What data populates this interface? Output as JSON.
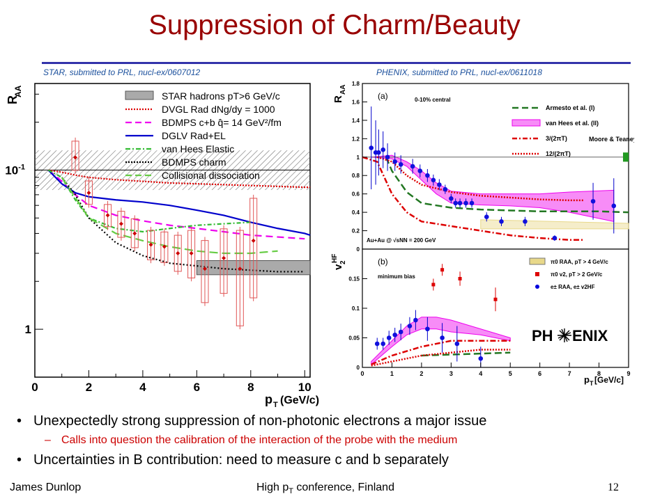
{
  "slide": {
    "title": "Suppression of Charm/Beauty",
    "left_citation": "STAR, submitted to PRL, nucl-ex/0607012",
    "right_citation": "PHENIX, submitted to PRL, nucl-ex/0611018",
    "bullets": [
      "Unexpectedly strong suppression of non-photonic electrons a major issue",
      "Calls into question the calibration of the interaction of the probe with the medium",
      "Uncertainties in B contribution: need to measure c and b separately"
    ],
    "footer_author": "James Dunlop",
    "footer_center_prefix": "High p",
    "footer_center_sub": "T",
    "footer_center_suffix": " conference, Finland",
    "page_number": "12"
  },
  "chart_data": [
    {
      "type": "line",
      "xlabel": "pT (GeV/c)",
      "ylabel": "RAA",
      "xlim": [
        0,
        10.2
      ],
      "ylim": [
        0.05,
        3.5
      ],
      "y_scale": "log",
      "x_ticks": [
        "0",
        "2",
        "4",
        "6",
        "8",
        "10"
      ],
      "y_ticks": [
        "1",
        "10-1"
      ],
      "legend_position": "top-right",
      "legend": [
        {
          "label": "STAR hadrons pT>6 GeV/c",
          "color": "#aaaaaa",
          "style": "box"
        },
        {
          "label": "DVGL Rad dNg/dy = 1000",
          "color": "#dd0000",
          "style": "dotted"
        },
        {
          "label": "BDMPS c+b q̂= 14 GeV²/fm",
          "color": "#ee00ee",
          "style": "dashed"
        },
        {
          "label": "DGLV Rad+EL",
          "color": "#0000cc",
          "style": "solid"
        },
        {
          "label": "van Hees Elastic",
          "color": "#33bb33",
          "style": "dashdot"
        },
        {
          "label": "BDMPS charm",
          "color": "#000000",
          "style": "dotted"
        },
        {
          "label": "Collisional dissociation",
          "color": "#66cc44",
          "style": "dashed"
        }
      ],
      "bands": [
        {
          "name": "normalization",
          "x": [
            0,
            10.2
          ],
          "y": [
            0.75,
            1.33
          ],
          "fill": "hatched"
        },
        {
          "name": "STAR hadrons pT>6 GeV/c",
          "x": [
            6,
            10.2
          ],
          "y": [
            0.22,
            0.27
          ],
          "fill": "#aaaaaa"
        }
      ],
      "series": [
        {
          "name": "DVGL Rad dNg/dy = 1000",
          "color": "#dd0000",
          "dash": "2,2",
          "x": [
            0.5,
            1,
            1.5,
            2,
            3,
            4,
            5,
            6,
            7,
            8,
            9,
            10,
            10.2
          ],
          "y": [
            1.0,
            0.97,
            0.93,
            0.9,
            0.87,
            0.85,
            0.83,
            0.82,
            0.81,
            0.8,
            0.79,
            0.78,
            0.78
          ]
        },
        {
          "name": "BDMPS c+b q̂= 14 GeV²/fm",
          "color": "#ee00ee",
          "dash": "10,6",
          "x": [
            0.5,
            1,
            1.5,
            2,
            3,
            4,
            5,
            6,
            7,
            8,
            9,
            10
          ],
          "y": [
            1.0,
            0.85,
            0.7,
            0.6,
            0.52,
            0.48,
            0.45,
            0.43,
            0.41,
            0.39,
            0.38,
            0.37
          ]
        },
        {
          "name": "DGLV Rad+EL",
          "color": "#0000cc",
          "dash": "",
          "x": [
            0.5,
            1,
            1.5,
            2,
            3,
            4,
            5,
            6,
            7,
            8,
            9,
            10,
            10.2
          ],
          "y": [
            1.0,
            0.82,
            0.72,
            0.68,
            0.65,
            0.63,
            0.6,
            0.56,
            0.52,
            0.47,
            0.43,
            0.4,
            0.39
          ]
        },
        {
          "name": "van Hees Elastic",
          "color": "#33bb33",
          "dash": "6,3,2,3",
          "x": [
            0.5,
            1,
            1.5,
            2,
            3,
            4,
            5,
            6,
            7,
            8
          ],
          "y": [
            1.0,
            0.9,
            0.65,
            0.5,
            0.43,
            0.41,
            0.43,
            0.45,
            0.46,
            0.47
          ]
        },
        {
          "name": "BDMPS charm",
          "color": "#000000",
          "dash": "2,3",
          "x": [
            1,
            1.5,
            2,
            3,
            4,
            5,
            6,
            7,
            8,
            9,
            10
          ],
          "y": [
            0.9,
            0.7,
            0.5,
            0.35,
            0.29,
            0.26,
            0.25,
            0.24,
            0.235,
            0.23,
            0.23
          ]
        },
        {
          "name": "Collisional dissociation",
          "color": "#66cc44",
          "dash": "12,6",
          "x": [
            1,
            2,
            3,
            4,
            5,
            6,
            7,
            8,
            9
          ],
          "y": [
            0.9,
            0.5,
            0.4,
            0.36,
            0.33,
            0.31,
            0.3,
            0.3,
            0.31
          ]
        }
      ],
      "points": [
        {
          "x": 1.5,
          "y": 1.2,
          "lo": 0.95,
          "hi": 1.6
        },
        {
          "x": 2.0,
          "y": 0.72,
          "lo": 0.58,
          "hi": 0.9
        },
        {
          "x": 2.7,
          "y": 0.52,
          "lo": 0.42,
          "hi": 0.64
        },
        {
          "x": 3.2,
          "y": 0.46,
          "lo": 0.36,
          "hi": 0.58
        },
        {
          "x": 3.7,
          "y": 0.4,
          "lo": 0.31,
          "hi": 0.52
        },
        {
          "x": 4.3,
          "y": 0.34,
          "lo": 0.26,
          "hi": 0.44
        },
        {
          "x": 4.8,
          "y": 0.33,
          "lo": 0.25,
          "hi": 0.43
        },
        {
          "x": 5.3,
          "y": 0.3,
          "lo": 0.22,
          "hi": 0.41
        },
        {
          "x": 5.8,
          "y": 0.3,
          "lo": 0.2,
          "hi": 0.44
        },
        {
          "x": 6.3,
          "y": 0.24,
          "lo": 0.14,
          "hi": 0.38
        },
        {
          "x": 7.0,
          "y": 0.28,
          "lo": 0.16,
          "hi": 0.45
        },
        {
          "x": 7.6,
          "y": 0.24,
          "lo": 0.1,
          "hi": 0.44
        },
        {
          "x": 8.1,
          "y": 0.36,
          "lo": 0.15,
          "hi": 0.7
        }
      ]
    },
    {
      "type": "line",
      "panel": "(a)",
      "title": "0-10% central",
      "annotation": "Au+Au @ √sNN = 200 GeV",
      "ylabel": "RAA",
      "xlim": [
        0,
        9
      ],
      "ylim": [
        0,
        1.8
      ],
      "y_ticks": [
        "0",
        "0.2",
        "0.4",
        "0.6",
        "0.8",
        "1",
        "1.2",
        "1.4",
        "1.6",
        "1.8"
      ],
      "legend": [
        {
          "label": "Armesto et al. (I)",
          "color": "#227722",
          "style": "dashed"
        },
        {
          "label": "van Hees et al. (II)",
          "color": "#ee00ee",
          "style": "band"
        },
        {
          "label": "3/(2πT)",
          "color": "#dd0000",
          "style": "dashdot"
        },
        {
          "label": "12/(2πT)",
          "color": "#dd0000",
          "style": "dotted"
        },
        {
          "label": "Moore & Teaney (III)",
          "color": "#000000",
          "style": "text"
        }
      ],
      "bands": [
        {
          "name": "van Hees et al. (II)",
          "color": "#ee00ee",
          "x": [
            0.3,
            1,
            1.5,
            2,
            2.5,
            3,
            4,
            5,
            6,
            7,
            8.5
          ],
          "upper": [
            1.0,
            1.02,
            0.95,
            0.85,
            0.72,
            0.63,
            0.6,
            0.6,
            0.6,
            0.62,
            0.64
          ],
          "lower": [
            1.0,
            0.98,
            0.9,
            0.75,
            0.6,
            0.5,
            0.48,
            0.47,
            0.45,
            0.4,
            0.3
          ]
        },
        {
          "name": "pi0 RAA, pT > 4 GeV/c",
          "color": "#e8d88a",
          "x": [
            4,
            9
          ],
          "upper": [
            0.32,
            0.28
          ],
          "lower": [
            0.22,
            0.22
          ]
        }
      ],
      "series": [
        {
          "name": "Armesto et al. (I)",
          "color": "#227722",
          "dash": "10,5",
          "x": [
            0.8,
            1,
            1.5,
            2,
            3,
            4,
            5,
            6,
            7,
            8,
            9
          ],
          "y": [
            1.0,
            0.85,
            0.62,
            0.5,
            0.45,
            0.43,
            0.42,
            0.41,
            0.41,
            0.41,
            0.4
          ]
        },
        {
          "name": "3/(2πT)",
          "color": "#dd0000",
          "dash": "8,3,2,3",
          "x": [
            0,
            0.5,
            1,
            1.5,
            2,
            3,
            4,
            5,
            6,
            7,
            7.5
          ],
          "y": [
            1.0,
            0.95,
            0.6,
            0.4,
            0.3,
            0.25,
            0.2,
            0.15,
            0.12,
            0.1,
            0.1
          ]
        },
        {
          "name": "12/(2πT)",
          "color": "#dd0000",
          "dash": "2,2",
          "x": [
            0.5,
            1,
            1.5,
            2,
            3,
            4,
            5,
            6,
            7,
            7.5
          ],
          "y": [
            1.0,
            0.95,
            0.8,
            0.7,
            0.62,
            0.58,
            0.56,
            0.54,
            0.53,
            0.53
          ]
        }
      ],
      "points": [
        {
          "x": 0.3,
          "y": 1.1,
          "err": 0.45
        },
        {
          "x": 0.45,
          "y": 1.05,
          "err": 0.35
        },
        {
          "x": 0.55,
          "y": 1.05,
          "err": 0.25
        },
        {
          "x": 0.7,
          "y": 1.08,
          "err": 0.2
        },
        {
          "x": 0.85,
          "y": 1.0,
          "err": 0.15
        },
        {
          "x": 1.1,
          "y": 0.95,
          "err": 0.1
        },
        {
          "x": 1.3,
          "y": 0.92,
          "err": 0.1
        },
        {
          "x": 1.7,
          "y": 0.9,
          "err": 0.08
        },
        {
          "x": 1.95,
          "y": 0.85,
          "err": 0.07
        },
        {
          "x": 2.2,
          "y": 0.8,
          "err": 0.07
        },
        {
          "x": 2.4,
          "y": 0.75,
          "err": 0.06
        },
        {
          "x": 2.6,
          "y": 0.7,
          "err": 0.06
        },
        {
          "x": 2.8,
          "y": 0.65,
          "err": 0.05
        },
        {
          "x": 3.0,
          "y": 0.55,
          "err": 0.05
        },
        {
          "x": 3.15,
          "y": 0.5,
          "err": 0.05
        },
        {
          "x": 3.3,
          "y": 0.5,
          "err": 0.05
        },
        {
          "x": 3.5,
          "y": 0.5,
          "err": 0.05
        },
        {
          "x": 3.7,
          "y": 0.5,
          "err": 0.05
        },
        {
          "x": 4.2,
          "y": 0.35,
          "err": 0.05
        },
        {
          "x": 4.7,
          "y": 0.3,
          "err": 0.05
        },
        {
          "x": 5.5,
          "y": 0.3,
          "err": 0.05
        },
        {
          "x": 6.5,
          "y": 0.12,
          "err": 0.03
        },
        {
          "x": 7.8,
          "y": 0.52,
          "err": 0.2
        },
        {
          "x": 8.5,
          "y": 0.47,
          "err": 0.3
        }
      ],
      "reference_line": 1.0
    },
    {
      "type": "line",
      "panel": "(b)",
      "title": "minimum bias",
      "xlabel": "pT [GeV/c]",
      "ylabel": "v2HF",
      "xlim": [
        0,
        9
      ],
      "ylim": [
        0,
        0.2
      ],
      "x_ticks": [
        "0",
        "1",
        "2",
        "3",
        "4",
        "5",
        "6",
        "7",
        "8",
        "9"
      ],
      "y_ticks": [
        "0",
        "0.05",
        "0.1",
        "0.15"
      ],
      "legend": [
        {
          "label": "π0 RAA, pT > 4 GeV/c",
          "color": "#e8d88a",
          "style": "box"
        },
        {
          "label": "π0 v2, pT > 2 GeV/c",
          "color": "#dd0000",
          "style": "square"
        },
        {
          "label": "e± RAA, e± v2HF",
          "color": "#0000dd",
          "style": "circle"
        }
      ],
      "bands": [
        {
          "name": "van Hees et al. (II)",
          "color": "#ee00ee",
          "x": [
            0.3,
            1,
            1.5,
            2,
            2.5,
            3,
            4,
            5
          ],
          "upper": [
            0.01,
            0.045,
            0.07,
            0.085,
            0.085,
            0.08,
            0.065,
            0.05
          ],
          "lower": [
            0.005,
            0.035,
            0.055,
            0.065,
            0.065,
            0.06,
            0.055,
            0.045
          ]
        }
      ],
      "series": [
        {
          "name": "Armesto et al. (I)",
          "color": "#227722",
          "dash": "10,5",
          "x": [
            2,
            5
          ],
          "y": [
            0.02,
            0.025
          ]
        },
        {
          "name": "3/(2πT)",
          "color": "#dd0000",
          "dash": "8,3,2,3",
          "x": [
            0.3,
            1,
            2,
            3,
            4,
            5
          ],
          "y": [
            0.005,
            0.02,
            0.035,
            0.045,
            0.045,
            0.045
          ]
        },
        {
          "name": "12/(2πT)",
          "color": "#dd0000",
          "dash": "2,2",
          "x": [
            0.3,
            1,
            2,
            3,
            4,
            5
          ],
          "y": [
            0.003,
            0.01,
            0.02,
            0.025,
            0.03,
            0.03
          ]
        }
      ],
      "points": [
        {
          "x": 0.5,
          "y": 0.04,
          "err": 0.01
        },
        {
          "x": 0.7,
          "y": 0.04,
          "err": 0.01
        },
        {
          "x": 0.9,
          "y": 0.05,
          "err": 0.012
        },
        {
          "x": 1.1,
          "y": 0.055,
          "err": 0.012
        },
        {
          "x": 1.3,
          "y": 0.06,
          "err": 0.014
        },
        {
          "x": 1.6,
          "y": 0.07,
          "err": 0.015
        },
        {
          "x": 1.8,
          "y": 0.08,
          "err": 0.017
        },
        {
          "x": 2.2,
          "y": 0.065,
          "err": 0.02
        },
        {
          "x": 2.7,
          "y": 0.05,
          "err": 0.025
        },
        {
          "x": 3.2,
          "y": 0.04,
          "err": 0.03
        },
        {
          "x": 4.0,
          "y": 0.015,
          "err": 0.02
        }
      ],
      "pi0_v2_points": [
        {
          "x": 2.4,
          "y": 0.14,
          "err": 0.01
        },
        {
          "x": 2.7,
          "y": 0.165,
          "err": 0.01
        },
        {
          "x": 3.3,
          "y": 0.15,
          "err": 0.012
        },
        {
          "x": 4.5,
          "y": 0.115,
          "err": 0.02
        }
      ]
    }
  ]
}
